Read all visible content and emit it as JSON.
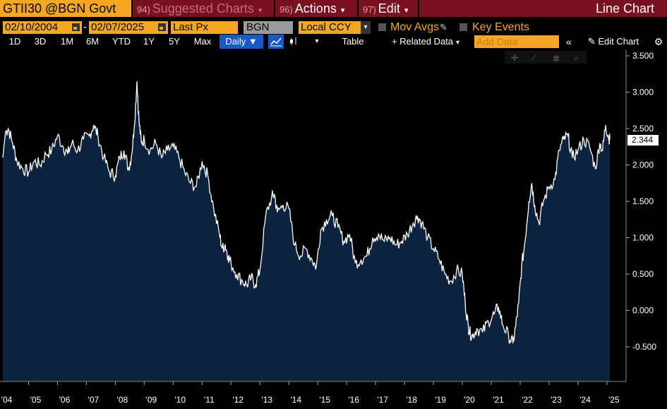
{
  "header": {
    "ticker": "GTII30 @BGN Govt",
    "suggested": {
      "num": "94)",
      "label": "Suggested Charts"
    },
    "actions": {
      "num": "96)",
      "label": "Actions"
    },
    "edit": {
      "num": "97)",
      "label": "Edit"
    },
    "chart_title": "Line Chart"
  },
  "controls": {
    "start_date": "02/10/2004",
    "end_date": "02/07/2025",
    "date_sep": "-",
    "field": "Last Px",
    "source": "BGN",
    "currency": "Local CCY",
    "mov_avgs": "Mov Avgs",
    "key_events": "Key Events"
  },
  "toolbar": {
    "ranges": [
      "1D",
      "3D",
      "1M",
      "6M",
      "YTD",
      "1Y",
      "5Y",
      "Max"
    ],
    "period": "Daily ▼",
    "table": "Table",
    "related": "+ Related Data",
    "add_data_placeholder": "Add Data",
    "edit_chart": "Edit Chart"
  },
  "colors": {
    "accent": "#f5a623",
    "button": "#7a1120",
    "fill": "#0c2340",
    "line": "#ffffff"
  },
  "chart_data": {
    "type": "area",
    "title": "GTII30 @BGN Govt - Last Px",
    "y_ticks": [
      "3.500",
      "3.000",
      "2.500",
      "2.000",
      "1.500",
      "1.000",
      "0.500",
      "0.000",
      "-0.500"
    ],
    "ylim": [
      -0.75,
      3.6
    ],
    "x_ticks": [
      "'04",
      "'05",
      "'06",
      "'07",
      "'08",
      "'09",
      "'10",
      "'11",
      "'12",
      "'13",
      "'14",
      "'15",
      "'16",
      "'17",
      "'18",
      "'19",
      "'20",
      "'21",
      "'22",
      "'23",
      "'24",
      "'25"
    ],
    "xlim": [
      2004.11,
      2025.1
    ],
    "last_value": "2.344",
    "series": [
      {
        "name": "GTII30",
        "x": [
          2004.11,
          2004.2,
          2004.3,
          2004.45,
          2004.6,
          2004.8,
          2005.0,
          2005.2,
          2005.4,
          2005.6,
          2005.8,
          2006.0,
          2006.2,
          2006.35,
          2006.5,
          2006.7,
          2006.9,
          2007.1,
          2007.25,
          2007.4,
          2007.6,
          2007.8,
          2008.0,
          2008.15,
          2008.3,
          2008.45,
          2008.55,
          2008.65,
          2008.75,
          2008.82,
          2008.9,
          2009.0,
          2009.2,
          2009.4,
          2009.6,
          2009.8,
          2010.0,
          2010.2,
          2010.4,
          2010.6,
          2010.8,
          2011.0,
          2011.2,
          2011.4,
          2011.6,
          2011.7,
          2011.8,
          2011.9,
          2012.0,
          2012.2,
          2012.4,
          2012.55,
          2012.7,
          2012.85,
          2013.0,
          2013.2,
          2013.4,
          2013.5,
          2013.6,
          2013.8,
          2014.0,
          2014.2,
          2014.4,
          2014.6,
          2014.8,
          2014.95,
          2015.1,
          2015.3,
          2015.5,
          2015.7,
          2015.9,
          2016.1,
          2016.3,
          2016.5,
          2016.7,
          2016.9,
          2017.1,
          2017.3,
          2017.5,
          2017.7,
          2017.9,
          2018.1,
          2018.3,
          2018.45,
          2018.6,
          2018.8,
          2019.0,
          2019.2,
          2019.4,
          2019.6,
          2019.8,
          2020.0,
          2020.1,
          2020.2,
          2020.25,
          2020.35,
          2020.5,
          2020.7,
          2020.9,
          2021.1,
          2021.25,
          2021.4,
          2021.6,
          2021.75,
          2021.85,
          2021.95,
          2022.05,
          2022.15,
          2022.3,
          2022.4,
          2022.5,
          2022.65,
          2022.8,
          2023.0,
          2023.2,
          2023.35,
          2023.5,
          2023.65,
          2023.8,
          2024.0,
          2024.2,
          2024.4,
          2024.6,
          2024.75,
          2024.85,
          2024.95,
          2025.05,
          2025.1
        ],
        "y": [
          2.1,
          2.45,
          2.5,
          2.3,
          2.05,
          1.95,
          1.9,
          2.05,
          2.0,
          2.15,
          2.2,
          2.4,
          2.25,
          2.15,
          2.3,
          2.2,
          2.35,
          2.4,
          2.55,
          2.4,
          2.1,
          1.9,
          1.85,
          2.1,
          2.2,
          1.95,
          2.1,
          2.5,
          3.15,
          2.6,
          2.3,
          2.35,
          2.2,
          2.3,
          2.1,
          2.2,
          2.25,
          2.1,
          1.9,
          1.75,
          1.7,
          2.05,
          1.85,
          1.4,
          1.05,
          0.85,
          0.9,
          0.75,
          0.65,
          0.5,
          0.4,
          0.35,
          0.45,
          0.35,
          0.55,
          1.3,
          1.55,
          1.6,
          1.35,
          1.45,
          1.4,
          0.9,
          0.75,
          0.85,
          0.7,
          0.6,
          1.1,
          1.25,
          1.3,
          1.15,
          0.95,
          1.05,
          0.65,
          0.7,
          0.75,
          1.0,
          1.05,
          0.95,
          1.0,
          0.9,
          0.95,
          1.05,
          1.2,
          1.3,
          1.2,
          1.0,
          0.85,
          0.7,
          0.5,
          0.4,
          0.55,
          0.5,
          0.1,
          -0.2,
          -0.3,
          -0.35,
          -0.25,
          -0.3,
          -0.15,
          -0.05,
          0.05,
          -0.2,
          -0.35,
          -0.45,
          -0.2,
          0.1,
          0.6,
          0.9,
          1.5,
          1.75,
          1.45,
          1.2,
          1.5,
          1.7,
          1.8,
          2.2,
          2.35,
          2.4,
          2.1,
          2.2,
          2.35,
          2.25,
          1.95,
          2.3,
          2.2,
          2.55,
          2.4,
          2.344
        ]
      }
    ]
  }
}
